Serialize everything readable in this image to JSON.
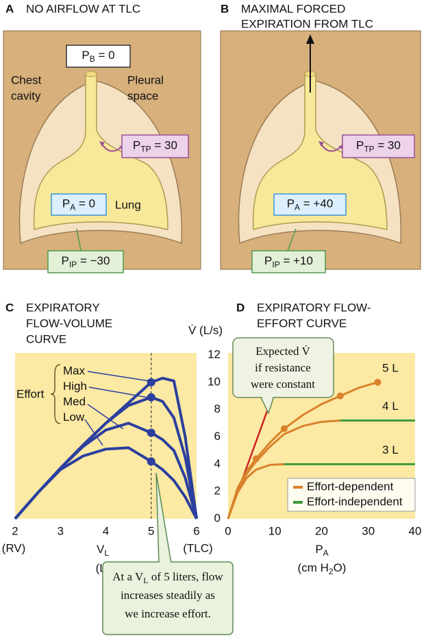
{
  "panels": [
    {
      "letter": "A",
      "title": [
        "NO AIRFLOW AT TLC"
      ],
      "labels": [
        [
          "P",
          "B",
          " = 0"
        ],
        [
          "P",
          "TP",
          " = 30"
        ],
        [
          "P",
          "A",
          " = 0"
        ],
        [
          "P",
          "IP",
          " = −30"
        ]
      ],
      "texts": [
        [
          "Chest",
          "cavity"
        ],
        [
          "Pleural",
          "space"
        ],
        [
          "Lung"
        ]
      ]
    },
    {
      "letter": "B",
      "title": [
        "MAXIMAL FORCED",
        "EXPIRATION FROM TLC"
      ],
      "labels": [
        [
          "P",
          "TP",
          " = 30"
        ],
        [
          "P",
          "A",
          " = +40"
        ],
        [
          "P",
          "IP",
          " = +10"
        ]
      ]
    }
  ],
  "chart_data": [
    {
      "type": "line",
      "letter": "C",
      "title": [
        "EXPIRATORY",
        "FLOW-VOLUME",
        "CURVE"
      ],
      "x": [
        2,
        2.5,
        3,
        3.5,
        4,
        4.5,
        5,
        5.25,
        5.5,
        5.75,
        6
      ],
      "series": [
        {
          "name": "Max",
          "color": "#2b3f9e",
          "values": [
            0,
            1.9,
            3.7,
            5.4,
            7.0,
            8.5,
            10.0,
            10.3,
            10.1,
            6.0,
            0
          ]
        },
        {
          "name": "High",
          "color": "#2b3f9e",
          "values": [
            0,
            1.9,
            3.7,
            5.4,
            7.0,
            8.3,
            8.9,
            8.6,
            7.4,
            4.5,
            0
          ]
        },
        {
          "name": "Med",
          "color": "#2b3f9e",
          "values": [
            0,
            1.9,
            3.7,
            5.3,
            6.5,
            7.0,
            6.3,
            5.8,
            5.0,
            3.0,
            0
          ]
        },
        {
          "name": "Low",
          "color": "#2b3f9e",
          "values": [
            0,
            1.9,
            3.6,
            4.6,
            5.1,
            5.2,
            4.2,
            3.6,
            2.8,
            1.6,
            0
          ]
        }
      ],
      "legend_title": "Effort",
      "xlim": [
        2,
        6
      ],
      "xticks": [
        2,
        3,
        4,
        5,
        6
      ],
      "ylim": [
        0,
        12
      ],
      "x_end_labels": [
        "(RV)",
        "(TLC)"
      ],
      "xlabel": [
        "V",
        "L",
        "(L)"
      ],
      "vline": 5,
      "callout": [
        [
          "At a V",
          "L",
          " of 5 liters, flow"
        ],
        [
          "increases steadily as"
        ],
        [
          "we increase effort."
        ]
      ]
    },
    {
      "type": "line",
      "letter": "D",
      "title": [
        "EXPIRATORY FLOW-",
        "EFFORT CURVE"
      ],
      "ylabel": "V̇ (L/s)",
      "xlabel": [
        "P",
        "A"
      ],
      "xunit": [
        "(cm H",
        "2",
        "O)"
      ],
      "xlim": [
        0,
        40
      ],
      "xticks": [
        0,
        10,
        20,
        30,
        40
      ],
      "ylim": [
        0,
        12
      ],
      "yticks": [
        0,
        2,
        4,
        6,
        8,
        10,
        12
      ],
      "series": [
        {
          "name": "5 L",
          "color": "#d9822b",
          "x": [
            0,
            2,
            4,
            6,
            9,
            12,
            16,
            20,
            24,
            28,
            32
          ],
          "values": [
            0,
            2.2,
            3.5,
            4.4,
            5.6,
            6.6,
            7.6,
            8.4,
            9.0,
            9.6,
            10.0
          ]
        },
        {
          "name": "4 L",
          "color": "#d9822b",
          "x": [
            0,
            2,
            4,
            6,
            9,
            12,
            16,
            20,
            24
          ],
          "values": [
            0,
            2.1,
            3.3,
            4.2,
            5.3,
            6.2,
            6.8,
            7.1,
            7.2
          ],
          "plateau": {
            "color": "#3a9a3a",
            "x": [
              24,
              40
            ],
            "values": [
              7.2,
              7.2
            ]
          }
        },
        {
          "name": "3 L",
          "color": "#d9822b",
          "x": [
            0,
            2,
            4,
            6,
            9,
            12
          ],
          "values": [
            0,
            1.9,
            3.0,
            3.6,
            3.95,
            4.0
          ],
          "plateau": {
            "color": "#3a9a3a",
            "x": [
              12,
              40
            ],
            "values": [
              4.0,
              4.0
            ]
          }
        }
      ],
      "points": {
        "color": "#d9822b",
        "x": [
          6,
          12,
          24,
          32
        ],
        "values": [
          4.4,
          6.6,
          9.0,
          10.0
        ]
      },
      "reference": {
        "color": "#cc2222",
        "x": [
          0,
          9
        ],
        "values": [
          0,
          8.5
        ]
      },
      "callout": [
        "Expected V̇",
        "if resistance",
        "were constant"
      ],
      "legend": {
        "position": "lower right",
        "entries": [
          {
            "name": "Effort-dependent",
            "color": "#d9822b"
          },
          {
            "name": "Effort-independent",
            "color": "#3a9a3a"
          }
        ]
      }
    }
  ]
}
